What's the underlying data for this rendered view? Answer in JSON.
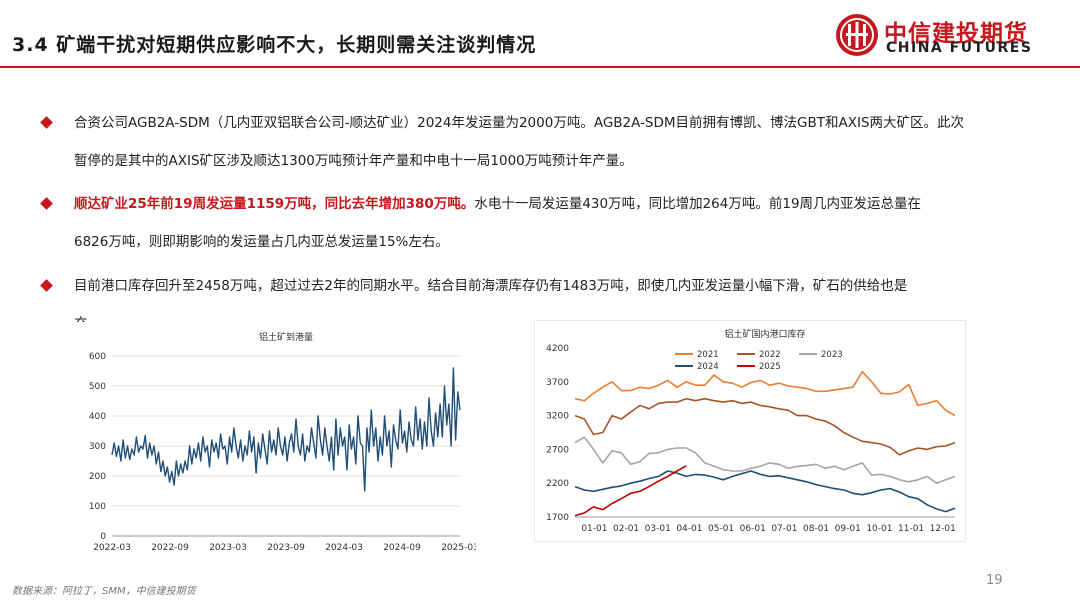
{
  "header": {
    "title": "3.4 矿端干扰对短期供应影响不大，长期则需关注谈判情况",
    "logo_cn": "中信建投期货",
    "logo_en": "CHINA FUTURES"
  },
  "bullets": [
    {
      "line1": "合资公司AGB2A-SDM（几内亚双铝联合公司-顺达矿业）2024年发运量为2000万吨。AGB2A-SDM目前拥有博凯、博法GBT和AXIS两大矿区。此次",
      "line2": "暂停的是其中的AXIS矿区涉及顺达1300万吨预计年产量和中电十一局1000万吨预计年产量。"
    },
    {
      "highlight": "顺达矿业25年前19周发运量1159万吨，同比去年增加380万吨。",
      "line1_rest": "水电十一局发运量430万吨，同比增加264万吨。前19周几内亚发运总量在",
      "line2": "6826万吨，则即期影响的发运量占几内亚总发运量15%左右。"
    },
    {
      "line1": "目前港口库存回升至2458万吨，超过过去2年的同期水平。结合目前海漂库存仍有1483万吨，即使几内亚发运量小幅下滑，矿石的供给也是",
      "line2": "充"
    }
  ],
  "chart_data": [
    {
      "type": "line",
      "title": "铝土矿到港量",
      "ylim": [
        0,
        600
      ],
      "yticks": [
        "0",
        "100",
        "200",
        "300",
        "400",
        "500",
        "600"
      ],
      "xticks": [
        "2022-03",
        "2022-09",
        "2023-03",
        "2023-09",
        "2024-03",
        "2024-09",
        "2025-03"
      ],
      "series": [
        {
          "name": "到港量",
          "color": "#1f4e79",
          "values": [
            270,
            310,
            265,
            300,
            250,
            320,
            260,
            300,
            255,
            290,
            270,
            330,
            280,
            300,
            290,
            335,
            260,
            310,
            270,
            300,
            240,
            280,
            215,
            250,
            200,
            230,
            180,
            215,
            170,
            250,
            200,
            240,
            210,
            250,
            220,
            300,
            240,
            290,
            260,
            310,
            250,
            330,
            280,
            300,
            230,
            320,
            280,
            310,
            260,
            340,
            290,
            300,
            240,
            330,
            280,
            360,
            300,
            260,
            320,
            250,
            300,
            270,
            350,
            280,
            330,
            210,
            310,
            260,
            340,
            290,
            240,
            350,
            280,
            320,
            270,
            360,
            300,
            270,
            330,
            250,
            310,
            340,
            280,
            390,
            300,
            270,
            340,
            250,
            300,
            280,
            360,
            310,
            260,
            400,
            320,
            270,
            360,
            300,
            250,
            330,
            220,
            390,
            270,
            360,
            300,
            330,
            220,
            370,
            290,
            330,
            240,
            400,
            310,
            300,
            150,
            360,
            280,
            420,
            300,
            360,
            250,
            330,
            270,
            400,
            300,
            350,
            230,
            370,
            320,
            290,
            420,
            310,
            350,
            280,
            380,
            320,
            300,
            430,
            320,
            390,
            290,
            380,
            300,
            460,
            350,
            300,
            410,
            330,
            440,
            330,
            500,
            370,
            440,
            300,
            560,
            320,
            480,
            420
          ]
        }
      ]
    },
    {
      "type": "line",
      "title": "铝土矿国内港口库存",
      "ylim": [
        1700,
        4200
      ],
      "yticks": [
        "1700",
        "2200",
        "2700",
        "3200",
        "3700",
        "4200"
      ],
      "xticks": [
        "01-01",
        "02-01",
        "03-01",
        "04-01",
        "05-01",
        "06-01",
        "07-01",
        "08-01",
        "09-01",
        "10-01",
        "11-01",
        "12-01"
      ],
      "series": [
        {
          "name": "2021",
          "color": "#ed7d31",
          "values": [
            3450,
            3420,
            3530,
            3620,
            3700,
            3570,
            3570,
            3620,
            3600,
            3650,
            3720,
            3620,
            3700,
            3650,
            3650,
            3800,
            3700,
            3680,
            3620,
            3690,
            3720,
            3650,
            3680,
            3640,
            3620,
            3600,
            3560,
            3560,
            3580,
            3600,
            3620,
            3850,
            3700,
            3530,
            3520,
            3550,
            3660,
            3350,
            3380,
            3420,
            3280,
            3200
          ]
        },
        {
          "name": "2022",
          "color": "#a5542a",
          "values": [
            3200,
            3150,
            2920,
            2950,
            3200,
            3150,
            3250,
            3350,
            3300,
            3380,
            3400,
            3400,
            3450,
            3420,
            3450,
            3420,
            3400,
            3420,
            3380,
            3400,
            3350,
            3330,
            3300,
            3280,
            3200,
            3200,
            3150,
            3120,
            3050,
            2950,
            2880,
            2820,
            2800,
            2780,
            2730,
            2620,
            2680,
            2720,
            2700,
            2740,
            2750,
            2800
          ]
        },
        {
          "name": "2023",
          "color": "#a6a6a6",
          "values": [
            2800,
            2880,
            2700,
            2500,
            2680,
            2650,
            2480,
            2520,
            2640,
            2650,
            2700,
            2720,
            2720,
            2650,
            2500,
            2450,
            2400,
            2380,
            2380,
            2420,
            2450,
            2500,
            2480,
            2420,
            2450,
            2460,
            2480,
            2420,
            2450,
            2400,
            2450,
            2500,
            2320,
            2330,
            2300,
            2250,
            2220,
            2250,
            2300,
            2200,
            2250,
            2300
          ]
        },
        {
          "name": "2024",
          "color": "#1f4e79",
          "values": [
            2150,
            2100,
            2080,
            2110,
            2140,
            2160,
            2200,
            2230,
            2270,
            2300,
            2380,
            2350,
            2300,
            2330,
            2320,
            2290,
            2250,
            2300,
            2340,
            2380,
            2330,
            2300,
            2310,
            2280,
            2250,
            2220,
            2180,
            2150,
            2120,
            2100,
            2050,
            2030,
            2060,
            2100,
            2120,
            2070,
            2000,
            1970,
            1880,
            1820,
            1780,
            1830
          ]
        },
        {
          "name": "2025",
          "color": "#c00000",
          "values": [
            1720,
            1760,
            1850,
            1810,
            1900,
            1970,
            2050,
            2080,
            2150,
            2230,
            2300,
            2380,
            2458
          ]
        }
      ]
    }
  ],
  "footer": {
    "source": "数据来源：阿拉丁，SMM，中信建投期货",
    "page": "19"
  }
}
